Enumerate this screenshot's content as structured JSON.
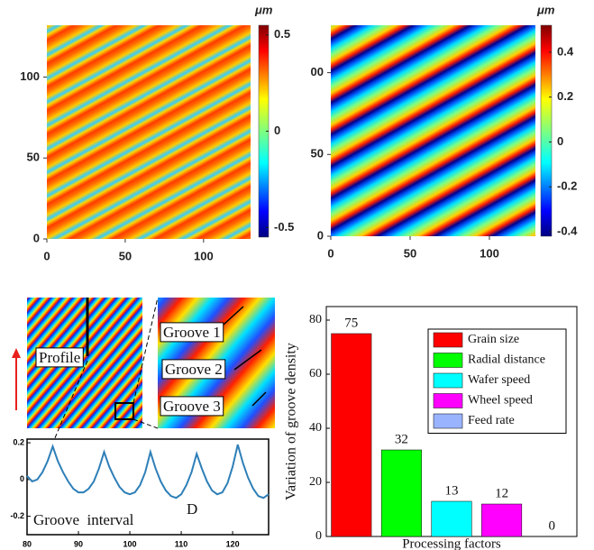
{
  "chart_data": [
    {
      "type": "heatmap",
      "xlim": [
        0,
        130
      ],
      "ylim": [
        0,
        132
      ],
      "xticks": [
        0,
        50,
        100
      ],
      "yticks": [
        0,
        50,
        100
      ],
      "colorbar_label": "μm",
      "clim": [
        -0.55,
        0.55
      ],
      "cticks": [
        -0.5,
        0,
        0.5
      ]
    },
    {
      "type": "heatmap",
      "xlim": [
        0,
        129
      ],
      "ylim": [
        0,
        129
      ],
      "xticks": [
        0,
        50,
        100
      ],
      "yticks": [
        0,
        50,
        {
          "value": 100,
          "label": "00"
        }
      ],
      "colorbar_label": "μm",
      "clim": [
        -0.42,
        0.52
      ],
      "cticks": [
        -0.4,
        -0.2,
        0,
        0.2,
        0.4
      ]
    },
    {
      "type": "line",
      "x": [
        80,
        81,
        82,
        83,
        84,
        85,
        86,
        87,
        88,
        89,
        90,
        91,
        92,
        93,
        94,
        95,
        96,
        97,
        98,
        99,
        100,
        101,
        102,
        103,
        104,
        105,
        106,
        107,
        108,
        109,
        110,
        111,
        112,
        113,
        114,
        115,
        116,
        117,
        118,
        119,
        120,
        121,
        122,
        123,
        124,
        125,
        126,
        127
      ],
      "series": [
        {
          "color": "#2e7fb8",
          "values": [
            0.02,
            -0.01,
            0.0,
            0.04,
            0.1,
            0.18,
            0.1,
            0.04,
            -0.01,
            -0.05,
            -0.07,
            -0.07,
            -0.05,
            -0.01,
            0.06,
            0.15,
            0.07,
            0.01,
            -0.04,
            -0.07,
            -0.08,
            -0.07,
            -0.03,
            0.04,
            0.15,
            0.06,
            -0.01,
            -0.06,
            -0.09,
            -0.1,
            -0.08,
            -0.03,
            0.04,
            0.14,
            0.06,
            -0.01,
            -0.06,
            -0.08,
            -0.07,
            -0.02,
            0.07,
            0.19,
            0.09,
            0.01,
            -0.05,
            -0.09,
            -0.1,
            -0.08
          ]
        }
      ],
      "xlim": [
        80,
        127
      ],
      "ylim": [
        -0.3,
        0.22
      ],
      "xticks": [
        80,
        90,
        100,
        110,
        120
      ],
      "yticks": [
        -0.2,
        0,
        0.2
      ],
      "annotations": [
        "Profile",
        "Groove 1",
        "Groove 2",
        "Groove 3",
        "Groove  interval",
        "D"
      ]
    },
    {
      "type": "bar",
      "categories": [
        "Grain size",
        "Radial distance",
        "Wafer speed",
        "Wheel speed",
        "Feed rate"
      ],
      "values": [
        75,
        32,
        13,
        12,
        0
      ],
      "colors": [
        "#ff0000",
        "#00ff00",
        "#00ffff",
        "#ff00ff",
        "#99b3ff"
      ],
      "ylim": [
        0,
        85
      ],
      "yticks": [
        0,
        20,
        40,
        60,
        80
      ],
      "y_label": "Variation of groove density",
      "x_label": "Processing factors",
      "legend": "upper right"
    }
  ]
}
